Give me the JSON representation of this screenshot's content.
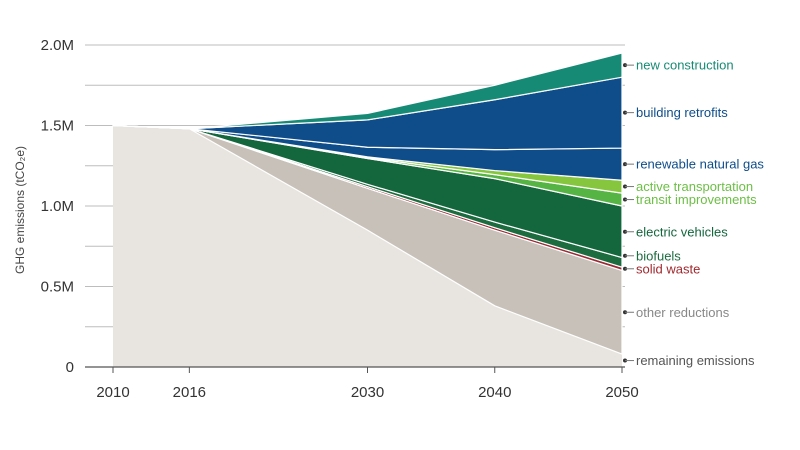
{
  "chart_data": {
    "type": "area",
    "title": "",
    "xlabel": "",
    "ylabel": "GHG emissions (tCO₂e)",
    "x": [
      2010,
      2016,
      2030,
      2040,
      2050
    ],
    "xticks": [
      "2010",
      "2016",
      "2030",
      "2040",
      "2050"
    ],
    "ylim": [
      0,
      2000000
    ],
    "yticks": [
      {
        "value": 0,
        "label": "0"
      },
      {
        "value": 500000,
        "label": "0.5M"
      },
      {
        "value": 1000000,
        "label": "1.0M"
      },
      {
        "value": 1500000,
        "label": "1.5M"
      },
      {
        "value": 2000000,
        "label": "2.0M"
      }
    ],
    "grid": true,
    "legend": "right (direct labels)",
    "series": [
      {
        "name": "remaining emissions",
        "color": "#e8e5e0",
        "label_color": "#555555",
        "values": [
          1500000,
          1480000,
          850000,
          380000,
          80000
        ]
      },
      {
        "name": "other reductions",
        "color": "#c8c1b9",
        "label_color": "#888888",
        "values": [
          0,
          0,
          260000,
          470000,
          520000
        ]
      },
      {
        "name": "solid waste",
        "color": "#9b2a35",
        "label_color": "#a0292f",
        "values": [
          0,
          0,
          10000,
          15000,
          20000
        ]
      },
      {
        "name": "biofuels",
        "color": "#1d6c40",
        "label_color": "#1d6c40",
        "values": [
          0,
          0,
          15000,
          35000,
          60000
        ]
      },
      {
        "name": "electric vehicles",
        "color": "#14663d",
        "label_color": "#14663d",
        "values": [
          0,
          0,
          160000,
          270000,
          320000
        ]
      },
      {
        "name": "transit improvements",
        "color": "#56b445",
        "label_color": "#6cbf45",
        "values": [
          0,
          0,
          5000,
          25000,
          80000
        ]
      },
      {
        "name": "active transportation",
        "color": "#86c63f",
        "label_color": "#6cbf45",
        "values": [
          0,
          0,
          5000,
          25000,
          80000
        ]
      },
      {
        "name": "renewable natural gas",
        "color": "#0e4d8a",
        "label_color": "#0e4d8a",
        "values": [
          0,
          0,
          60000,
          130000,
          200000
        ]
      },
      {
        "name": "building retrofits",
        "color": "#0e4d8a",
        "label_color": "#0e4d8a",
        "values": [
          0,
          0,
          170000,
          310000,
          440000
        ]
      },
      {
        "name": "new construction",
        "color": "#168a74",
        "label_color": "#168a74",
        "values": [
          0,
          0,
          40000,
          90000,
          150000
        ]
      }
    ]
  }
}
